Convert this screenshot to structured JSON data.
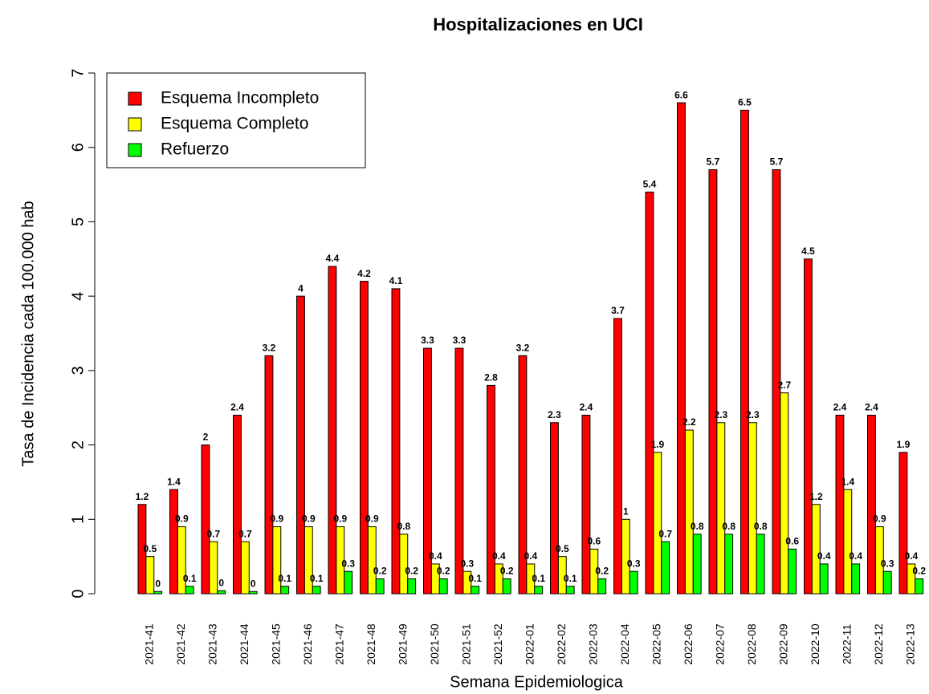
{
  "chart_data": {
    "type": "grouped-bar",
    "title": "Hospitalizaciones en UCI",
    "y_label": "Tasa de Incidencia cada 100.000 hab",
    "x_label": "Semana Epidemiologica",
    "categories": [
      "2021-41",
      "2021-42",
      "2021-43",
      "2021-44",
      "2021-45",
      "2021-46",
      "2021-47",
      "2021-48",
      "2021-49",
      "2021-50",
      "2021-51",
      "2021-52",
      "2022-01",
      "2022-02",
      "2022-03",
      "2022-04",
      "2022-05",
      "2022-06",
      "2022-07",
      "2022-08",
      "2022-09",
      "2022-10",
      "2022-11",
      "2022-12",
      "2022-13"
    ],
    "series": [
      {
        "name": "Esquema Incompleto",
        "color": "#ff0000",
        "values": [
          1.2,
          1.4,
          2,
          2.4,
          3.2,
          4,
          4.4,
          4.2,
          4.1,
          3.3,
          3.3,
          2.8,
          3.2,
          2.3,
          2.4,
          3.7,
          5.4,
          6.6,
          5.7,
          6.5,
          5.7,
          4.5,
          2.4,
          2.4,
          1.9
        ]
      },
      {
        "name": "Esquema Completo",
        "color": "#ffff00",
        "values": [
          0.5,
          0.9,
          0.7,
          0.7,
          0.9,
          0.9,
          0.9,
          0.9,
          0.8,
          0.4,
          0.3,
          0.4,
          0.4,
          0.5,
          0.6,
          1,
          1.9,
          2.2,
          2.3,
          2.3,
          2.7,
          1.2,
          1.4,
          0.9,
          0.4
        ]
      },
      {
        "name": "Refuerzo",
        "color": "#00ff00",
        "values": [
          0.03,
          0.1,
          0.04,
          0.03,
          0.1,
          0.1,
          0.3,
          0.2,
          0.2,
          0.2,
          0.1,
          0.2,
          0.1,
          0.1,
          0.2,
          0.3,
          0.7,
          0.8,
          0.8,
          0.8,
          0.6,
          0.4,
          0.4,
          0.3,
          0.2
        ],
        "value_labels": [
          "0",
          "0.1",
          "0",
          "0",
          "0.1",
          "0.1",
          "0.3",
          "0.2",
          "0.2",
          "0.2",
          "0.1",
          "0.2",
          "0.1",
          "0.1",
          "0.2",
          "0.3",
          "0.7",
          "0.8",
          "0.8",
          "0.8",
          "0.6",
          "0.4",
          "0.4",
          "0.3",
          "0.2"
        ]
      }
    ],
    "ylim": [
      0,
      7
    ],
    "yticks": [
      0,
      1,
      2,
      3,
      4,
      5,
      6,
      7
    ],
    "legend": "topleft"
  }
}
